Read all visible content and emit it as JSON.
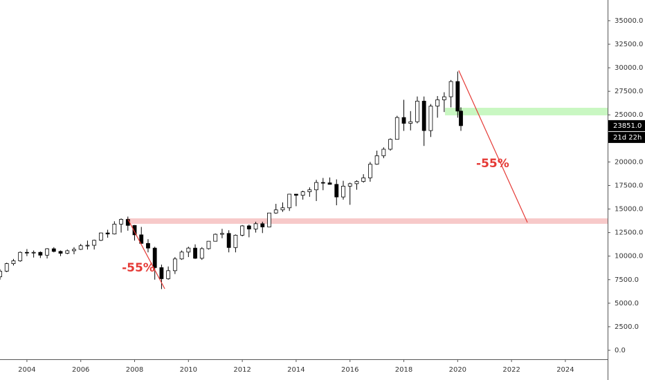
{
  "chart_data": {
    "type": "candlestick",
    "x": [
      2003.0,
      2003.25,
      2003.5,
      2003.75,
      2004.0,
      2004.25,
      2004.5,
      2004.75,
      2005.0,
      2005.25,
      2005.5,
      2005.75,
      2006.0,
      2006.25,
      2006.5,
      2006.75,
      2007.0,
      2007.25,
      2007.5,
      2007.75,
      2008.0,
      2008.25,
      2008.5,
      2008.75,
      2009.0,
      2009.25,
      2009.5,
      2009.75,
      2010.0,
      2010.25,
      2010.5,
      2010.75,
      2011.0,
      2011.25,
      2011.5,
      2011.75,
      2012.0,
      2012.25,
      2012.5,
      2012.75,
      2013.0,
      2013.25,
      2013.5,
      2013.75,
      2014.0,
      2014.25,
      2014.5,
      2014.75,
      2015.0,
      2015.25,
      2015.5,
      2015.75,
      2016.0,
      2016.25,
      2016.5,
      2016.75,
      2017.0,
      2017.25,
      2017.5,
      2017.75,
      2018.0,
      2018.25,
      2018.5,
      2018.75,
      2019.0,
      2019.25,
      2019.5,
      2019.75,
      2020.0,
      2020.12
    ],
    "open": [
      7800,
      8400,
      9200,
      9500,
      10400,
      10350,
      10400,
      10100,
      10780,
      10500,
      10300,
      10570,
      10720,
      11100,
      11150,
      11680,
      12460,
      12350,
      13400,
      13900,
      13260,
      12260,
      11350,
      10850,
      8780,
      7600,
      8450,
      9700,
      10430,
      10850,
      9770,
      10790,
      11580,
      12320,
      12410,
      10910,
      12220,
      13210,
      12880,
      13440,
      13100,
      14580,
      14910,
      15130,
      16580,
      16460,
      16830,
      17040,
      17820,
      17780,
      17620,
      16280,
      17430,
      17690,
      17930,
      18310,
      19760,
      20660,
      21350,
      22400,
      24720,
      24100,
      24270,
      26460,
      23330,
      25930,
      26600,
      26920,
      28540,
      25400
    ],
    "high": [
      8600,
      9300,
      9700,
      10500,
      10750,
      10600,
      10500,
      10850,
      10950,
      10600,
      10700,
      10950,
      11300,
      11650,
      11750,
      12500,
      12800,
      13700,
      14000,
      14200,
      13300,
      13100,
      11800,
      11000,
      9100,
      8900,
      9900,
      10600,
      11000,
      11250,
      10950,
      11600,
      12400,
      12900,
      12750,
      12300,
      13300,
      13350,
      13650,
      13650,
      14600,
      15550,
      15700,
      16600,
      16600,
      16950,
      17300,
      18100,
      18300,
      18350,
      18150,
      18000,
      17800,
      18050,
      18700,
      20000,
      21200,
      21550,
      22500,
      24900,
      26600,
      25400,
      26950,
      26950,
      26150,
      27000,
      27400,
      28700,
      29600,
      25800
    ],
    "low": [
      7500,
      8300,
      9000,
      9400,
      10000,
      9850,
      9800,
      9750,
      10400,
      10000,
      10200,
      10200,
      10650,
      10700,
      10700,
      11600,
      11950,
      12300,
      12500,
      12700,
      11650,
      11300,
      10400,
      7500,
      6500,
      7500,
      8100,
      9600,
      9900,
      9700,
      9600,
      10700,
      11550,
      11900,
      10400,
      10400,
      12100,
      12000,
      12500,
      12450,
      13100,
      14500,
      14700,
      14800,
      15300,
      16000,
      16300,
      15850,
      17000,
      17600,
      15400,
      16000,
      15450,
      17050,
      17800,
      17900,
      19700,
      20400,
      21200,
      22400,
      23300,
      23350,
      24100,
      21700,
      22650,
      24700,
      25300,
      25800,
      24700,
      23300
    ],
    "close": [
      8400,
      9200,
      9500,
      10400,
      10350,
      10400,
      10100,
      10780,
      10500,
      10300,
      10570,
      10720,
      11100,
      11150,
      11680,
      12460,
      12350,
      13400,
      13900,
      13260,
      12260,
      11350,
      10850,
      8780,
      7600,
      8450,
      9700,
      10430,
      10850,
      9770,
      10790,
      11580,
      12320,
      12410,
      10910,
      12220,
      13210,
      12880,
      13440,
      13100,
      14580,
      14910,
      15130,
      16580,
      16460,
      16830,
      17040,
      17820,
      17780,
      17620,
      16280,
      17430,
      17690,
      17930,
      18310,
      19760,
      20660,
      21350,
      22400,
      24720,
      24100,
      24270,
      26460,
      23330,
      25930,
      26600,
      26920,
      28540,
      25400,
      23851
    ],
    "up_color": "#ffffff",
    "down_color": "#000000",
    "xlim": [
      2003.0,
      2025.57
    ],
    "ylim": [
      -954,
      37197
    ],
    "xticks": [
      2004,
      2006,
      2008,
      2010,
      2012,
      2014,
      2016,
      2018,
      2020,
      2022,
      2024
    ],
    "yticks": [
      {
        "value": 0,
        "label": "0.0"
      },
      {
        "value": 2500,
        "label": "2500.0"
      },
      {
        "value": 5000,
        "label": "5000.0"
      },
      {
        "value": 7500,
        "label": "7500.0"
      },
      {
        "value": 10000,
        "label": "10000.0"
      },
      {
        "value": 12500,
        "label": "12500.0"
      },
      {
        "value": 15000,
        "label": "15000.0"
      },
      {
        "value": 17500,
        "label": "17500.0"
      },
      {
        "value": 20000,
        "label": "20000.0"
      },
      {
        "value": 22500,
        "label": "22500.0"
      },
      {
        "value": 25000,
        "label": "25000.0"
      },
      {
        "value": 27500,
        "label": "27500.0"
      },
      {
        "value": 30000,
        "label": "30000.0"
      },
      {
        "value": 32500,
        "label": "32500.0"
      },
      {
        "value": 35000,
        "label": "35000.0"
      }
    ],
    "last_price": {
      "value": 23851,
      "label": "23851.0"
    },
    "countdown": "21d 22h",
    "zones": [
      {
        "x": 2007.7,
        "ylim": [
          13430,
          14010
        ],
        "color": "#f7c9c9"
      },
      {
        "x": 2019.53,
        "ylim": [
          24950,
          25750
        ],
        "color": "#c9f7c2"
      }
    ],
    "trend_lines": [
      {
        "x": [
          2007.76,
          2009.12
        ],
        "y": [
          13870,
          6530
        ],
        "color": "#e53935"
      },
      {
        "x": [
          2020.04,
          2022.59
        ],
        "y": [
          29710,
          13570
        ],
        "color": "#e53935"
      }
    ],
    "annotations": [
      {
        "text": "-55%",
        "x": 2008.14,
        "y": 8730,
        "color": "#e53935"
      },
      {
        "text": "-55%",
        "x": 2021.3,
        "y": 19810,
        "color": "#e53935"
      }
    ]
  }
}
